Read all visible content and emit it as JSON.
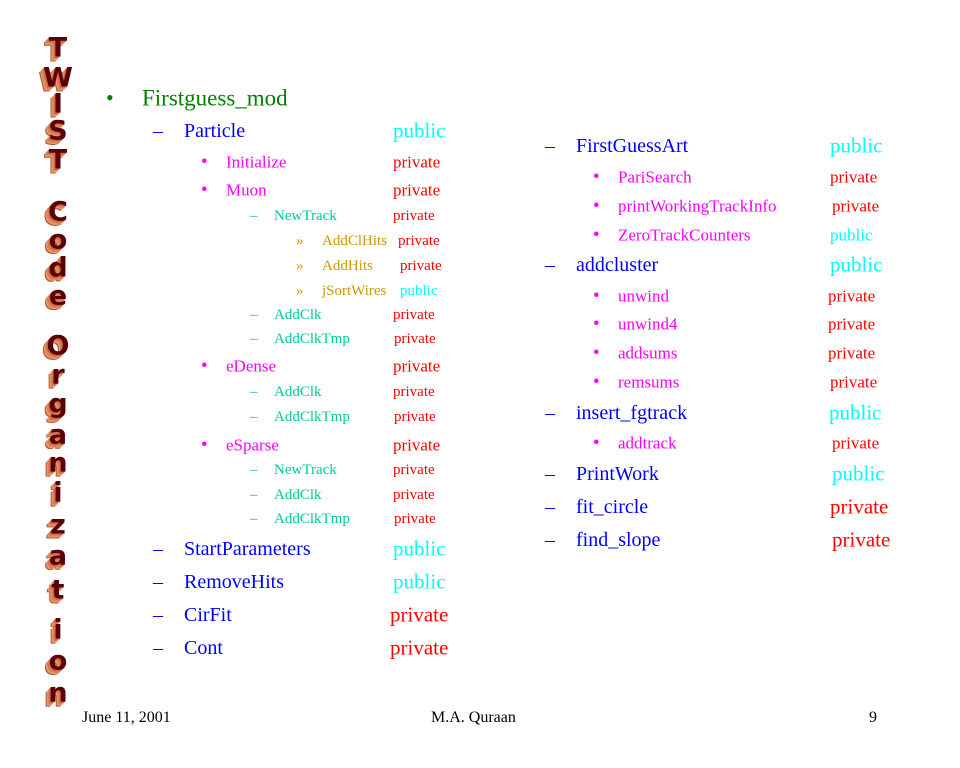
{
  "title_art": "TWIST Code Organization",
  "colors": {
    "title": "#008000",
    "level2": "#0000FF",
    "level3": "#FF00FF",
    "level4": "#00CC99",
    "level5": "#CC9900",
    "public": "#00FFFF",
    "private": "#FF0000"
  },
  "top_bullet": {
    "bullet": "•",
    "label": "Firstguess_mod"
  },
  "left": [
    {
      "level": 2,
      "marker": "–",
      "label": "Particle",
      "status": "public"
    },
    {
      "level": 3,
      "marker": "•",
      "label": "Initialize",
      "status": "private"
    },
    {
      "level": 3,
      "marker": "•",
      "label": "Muon",
      "status": "private"
    },
    {
      "level": 4,
      "marker": "–",
      "label": "NewTrack",
      "status": "private"
    },
    {
      "level": 5,
      "marker": "»",
      "label": "AddClHits",
      "status": "private"
    },
    {
      "level": 5,
      "marker": "»",
      "label": "AddHits",
      "status": "private"
    },
    {
      "level": 5,
      "marker": "»",
      "label": "jSortWires",
      "status": "public"
    },
    {
      "level": 4,
      "marker": "–",
      "label": "AddClk",
      "status": "private"
    },
    {
      "level": 4,
      "marker": "–",
      "label": "AddClkTmp",
      "status": "private"
    },
    {
      "level": 3,
      "marker": "•",
      "label": "eDense",
      "status": "private"
    },
    {
      "level": 4,
      "marker": "–",
      "label": "AddClk",
      "status": "private"
    },
    {
      "level": 4,
      "marker": "–",
      "label": "AddClkTmp",
      "status": "private"
    },
    {
      "level": 3,
      "marker": "•",
      "label": "eSparse",
      "status": "private"
    },
    {
      "level": 4,
      "marker": "–",
      "label": "NewTrack",
      "status": "private"
    },
    {
      "level": 4,
      "marker": "–",
      "label": "AddClk",
      "status": "private"
    },
    {
      "level": 4,
      "marker": "–",
      "label": "AddClkTmp",
      "status": "private"
    },
    {
      "level": 2,
      "marker": "–",
      "label": "StartParameters",
      "status": "public"
    },
    {
      "level": 2,
      "marker": "–",
      "label": "RemoveHits",
      "status": "public"
    },
    {
      "level": 2,
      "marker": "–",
      "label": "CirFit",
      "status": "private"
    },
    {
      "level": 2,
      "marker": "–",
      "label": "Cont",
      "status": "private"
    }
  ],
  "right": [
    {
      "level": 2,
      "marker": "–",
      "label": "FirstGuessArt",
      "status": "public"
    },
    {
      "level": 3,
      "marker": "•",
      "label": "PariSearch",
      "status": "private"
    },
    {
      "level": 3,
      "marker": "•",
      "label": "printWorkingTrackInfo",
      "status": "private"
    },
    {
      "level": 3,
      "marker": "•",
      "label": "ZeroTrackCounters",
      "status": "public"
    },
    {
      "level": 2,
      "marker": "–",
      "label": "addcluster",
      "status": "public"
    },
    {
      "level": 3,
      "marker": "•",
      "label": "unwind",
      "status": "private"
    },
    {
      "level": 3,
      "marker": "•",
      "label": "unwind4",
      "status": "private"
    },
    {
      "level": 3,
      "marker": "•",
      "label": "addsums",
      "status": "private"
    },
    {
      "level": 3,
      "marker": "•",
      "label": "remsums",
      "status": "private"
    },
    {
      "level": 2,
      "marker": "–",
      "label": "insert_fgtrack",
      "status": "public"
    },
    {
      "level": 3,
      "marker": "•",
      "label": "addtrack",
      "status": "private"
    },
    {
      "level": 2,
      "marker": "–",
      "label": "PrintWork",
      "status": "public"
    },
    {
      "level": 2,
      "marker": "–",
      "label": "fit_circle",
      "status": "private"
    },
    {
      "level": 2,
      "marker": "–",
      "label": "find_slope",
      "status": "private"
    }
  ],
  "footer": {
    "date": "June 11, 2001",
    "author": "M.A. Quraan",
    "page": "9"
  }
}
